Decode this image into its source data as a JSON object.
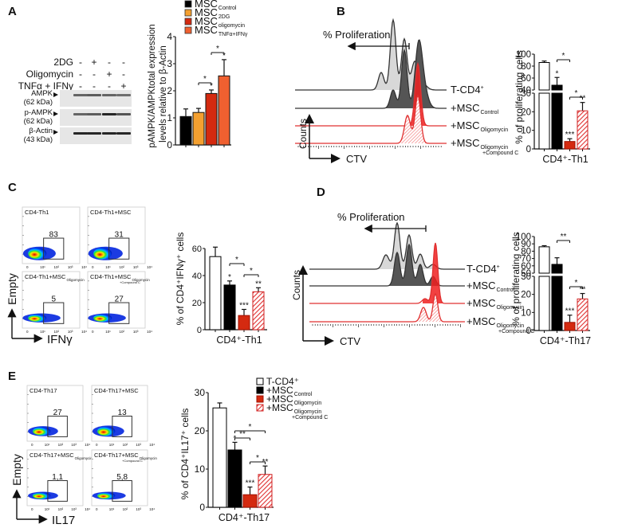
{
  "panels": {
    "A": {
      "label": "A"
    },
    "B": {
      "label": "B"
    },
    "C": {
      "label": "C"
    },
    "D": {
      "label": "D"
    },
    "E": {
      "label": "E"
    }
  },
  "western_blot": {
    "conditions": [
      {
        "name": "2DG",
        "signs": [
          "-",
          "+",
          "-",
          "-"
        ]
      },
      {
        "name": "Oligomycin",
        "signs": [
          "-",
          "-",
          "+",
          "-"
        ]
      },
      {
        "name": "TNFα + IFNγ",
        "signs": [
          "-",
          "-",
          "-",
          "+"
        ]
      }
    ],
    "bands": [
      {
        "name": "AMPK",
        "size": "(62 kDa)",
        "intensity": [
          0.55,
          0.6,
          0.55,
          0.5
        ]
      },
      {
        "name": "p-AMPK",
        "size": "(62 kDa)",
        "intensity": [
          0.55,
          0.6,
          0.9,
          0.65
        ]
      },
      {
        "name": "β-Actin",
        "size": "(43 kDa)",
        "intensity": [
          0.9,
          0.9,
          0.9,
          0.9
        ]
      }
    ]
  },
  "flow_C": {
    "xlabel": "IFNγ",
    "ylabel": "Empty",
    "plots": [
      {
        "title": "CD4-Th1",
        "sub": "",
        "value": "83"
      },
      {
        "title": "CD4-Th1+MSC",
        "sub": "",
        "value": "31"
      },
      {
        "title": "CD4-Th1+MSC",
        "sub": "Oligomycin",
        "value": "5"
      },
      {
        "title": "CD4-Th1+MSC",
        "sub": "Oligomycin +Compound C",
        "value": "27"
      }
    ],
    "ticks": [
      "0",
      "10¹",
      "10²",
      "10³",
      "10⁴"
    ]
  },
  "flow_E": {
    "xlabel": "IL17",
    "ylabel": "Empty",
    "plots": [
      {
        "title": "CD4-Th17",
        "sub": "",
        "value": "27"
      },
      {
        "title": "CD4-Th17+MSC",
        "sub": "",
        "value": "13"
      },
      {
        "title": "CD4-Th17+MSC",
        "sub": "Oligomycin",
        "value": "1,1"
      },
      {
        "title": "CD4-Th17+MSC",
        "sub": "Oligomycin +Compound C",
        "value": "5,8"
      }
    ],
    "ticks": [
      "0",
      "10¹",
      "10²",
      "10³",
      "10⁴"
    ]
  },
  "histogram_B": {
    "arrow_label": "% Proliferation",
    "xlabel": "CTV",
    "ylabel": "Counts",
    "rows": [
      {
        "label": "T-CD4",
        "sup": "+",
        "sub": ""
      },
      {
        "label": "+MSC",
        "sup": "",
        "sub": "Control"
      },
      {
        "label": "+MSC",
        "sup": "",
        "sub": "Oligomycin"
      },
      {
        "label": "+MSC",
        "sup": "",
        "sub": "Oligomycin",
        "sub2": "+Compound C"
      }
    ]
  },
  "histogram_D": {
    "arrow_label": "% Proliferation",
    "xlabel": "CTV",
    "ylabel": "Counts",
    "rows": [
      {
        "label": "T-CD4",
        "sup": "+",
        "sub": ""
      },
      {
        "label": "+MSC",
        "sup": "",
        "sub": "Control"
      },
      {
        "label": "+MSC",
        "sup": "",
        "sub": "Oligomycin"
      },
      {
        "label": "+MSC",
        "sup": "",
        "sub": "Oligomycin",
        "sub2": "+Compound C"
      }
    ]
  },
  "colors": {
    "black": "#000000",
    "orange": "#f4a030",
    "red": "#d42a10",
    "orange_red": "#f06030",
    "hatch": "#f08080"
  },
  "chart_data": [
    {
      "id": "A",
      "type": "bar",
      "ylabel": "pAMPK/AMPKtotal expression levels relative to β-Actin",
      "ylim": [
        0,
        4
      ],
      "yticks": [
        "0",
        "1",
        "2",
        "3",
        "4"
      ],
      "legend": [
        {
          "label": "MSC",
          "sub": "Control",
          "color": "#000000"
        },
        {
          "label": "MSC",
          "sub": "2DG",
          "color": "#f4a030"
        },
        {
          "label": "MSC",
          "sub": "oligomycin",
          "color": "#d42a10"
        },
        {
          "label": "MSC",
          "sub": "TNFα+IFNγ",
          "color": "#f06030"
        }
      ],
      "legend_position": "top",
      "values": [
        1.05,
        1.2,
        1.9,
        2.55
      ],
      "errors": [
        0.28,
        0.15,
        0.13,
        0.6
      ],
      "annotations": [
        {
          "bar": 2,
          "text": "*"
        },
        {
          "bar": 3,
          "text": "*"
        },
        {
          "from": 1,
          "to": 2,
          "text": "*"
        },
        {
          "from": 2,
          "to": 3,
          "text": "*"
        }
      ]
    },
    {
      "id": "B",
      "type": "bar",
      "ylabel": "% of proliferating cells",
      "xlabel": "CD4⁺-Th1",
      "broken_axis": {
        "lower": [
          0,
          30
        ],
        "upper": [
          40,
          100
        ]
      },
      "yticks_lower": [
        "0",
        "10",
        "20",
        "30"
      ],
      "yticks_upper": [
        "40",
        "60",
        "80",
        "100"
      ],
      "values": [
        86,
        48,
        4,
        20.5
      ],
      "errors": [
        2.5,
        13,
        1.5,
        4.5
      ],
      "styles": [
        "white",
        "black",
        "red",
        "hatch"
      ],
      "annotations": [
        {
          "bar": 1,
          "text": "*"
        },
        {
          "bar": 2,
          "text": "***"
        },
        {
          "bar": 3,
          "text": "**"
        },
        {
          "from": 1,
          "to": 2,
          "text": "*"
        },
        {
          "from": 2,
          "to": 3,
          "text": "*"
        }
      ]
    },
    {
      "id": "C",
      "type": "bar",
      "ylabel": "% of CD4⁺IFNγ⁺ cells",
      "xlabel": "CD4⁺-Th1",
      "ylim": [
        0,
        60
      ],
      "yticks": [
        "0",
        "20",
        "40",
        "60"
      ],
      "values": [
        54,
        33,
        10.5,
        28
      ],
      "errors": [
        7,
        3,
        4.5,
        3
      ],
      "styles": [
        "white",
        "black",
        "red",
        "hatch"
      ],
      "annotations": [
        {
          "bar": 1,
          "text": "*"
        },
        {
          "bar": 2,
          "text": "***"
        },
        {
          "bar": 3,
          "text": "**"
        },
        {
          "from": 1,
          "to": 2,
          "text": "*"
        },
        {
          "from": 2,
          "to": 3,
          "text": "*"
        }
      ]
    },
    {
      "id": "D",
      "type": "bar",
      "ylabel": "% of proliferating cells",
      "xlabel": "CD4⁺-Th17",
      "broken_axis": {
        "lower": [
          0,
          30
        ],
        "upper": [
          50,
          100
        ]
      },
      "yticks_lower": [
        "0",
        "10",
        "20",
        "30"
      ],
      "yticks_upper": [
        "50",
        "60",
        "70",
        "80",
        "90",
        "100"
      ],
      "values": [
        86,
        62,
        4.5,
        17.5
      ],
      "errors": [
        1.5,
        9,
        4,
        3
      ],
      "styles": [
        "white",
        "black",
        "red",
        "hatch"
      ],
      "annotations": [
        {
          "bar": 2,
          "text": "***"
        },
        {
          "bar": 3,
          "text": "**"
        },
        {
          "from": 1,
          "to": 2,
          "text": "**"
        },
        {
          "from": 2,
          "to": 3,
          "text": "*"
        }
      ]
    },
    {
      "id": "E",
      "type": "bar",
      "ylabel": "% of CD4⁺IL17⁺ cells",
      "xlabel": "CD4⁺-Th17",
      "ylim": [
        0,
        30
      ],
      "yticks": [
        "0",
        "10",
        "20",
        "30"
      ],
      "values": [
        26,
        15,
        3.3,
        8.6
      ],
      "errors": [
        1.3,
        2,
        2,
        2.2
      ],
      "styles": [
        "white",
        "black",
        "red",
        "hatch"
      ],
      "legend": [
        {
          "label": "T-CD4⁺",
          "sub": "",
          "style": "white"
        },
        {
          "label": "+MSC",
          "sub": "Control",
          "style": "black"
        },
        {
          "label": "+MSC",
          "sub": "Oligomycin",
          "style": "red"
        },
        {
          "label": "+MSC",
          "sub": "Oligomycin +Compound C",
          "style": "hatch"
        }
      ],
      "legend_position": "right",
      "annotations": [
        {
          "bar": 1,
          "text": "*"
        },
        {
          "bar": 2,
          "text": "***"
        },
        {
          "bar": 3,
          "text": "**"
        },
        {
          "from": 1,
          "to": 2,
          "text": "**"
        },
        {
          "from": 1,
          "to": 3,
          "text": "*"
        },
        {
          "from": 2,
          "to": 3,
          "text": "*"
        }
      ]
    }
  ]
}
